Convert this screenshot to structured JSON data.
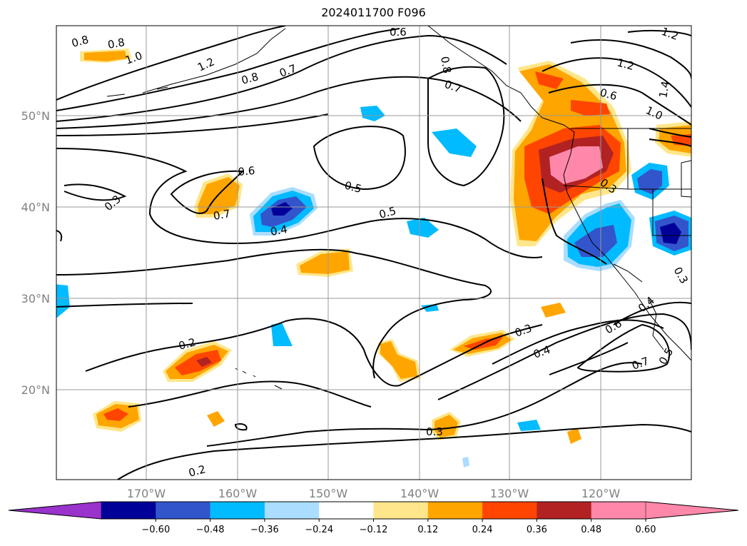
{
  "title": "2024011700 F096",
  "map": {
    "lat_labels": [
      "50°N",
      "40°N",
      "30°N",
      "20°N"
    ],
    "lon_labels": [
      "170°W",
      "160°W",
      "150°W",
      "140°W",
      "130°W",
      "120°W"
    ],
    "contour_labels": [
      "0.8",
      "0.8",
      "1.0",
      "1.2",
      "0.8",
      "0.7",
      "0.6",
      "0.8",
      "0.7",
      "0.6",
      "1.2",
      "1.0",
      "1.4",
      "1.2",
      "0.6",
      "0.5",
      "0.5",
      "0.7",
      "0.4",
      "0.3",
      "0.3",
      "0.2",
      "0.3",
      "0.4",
      "0.6",
      "0.7",
      "0.5",
      "0.3",
      "0.2",
      "0.3",
      "0.4"
    ]
  },
  "colorbar": {
    "ticks": [
      "−0.60",
      "−0.48",
      "−0.36",
      "−0.24",
      "−0.12",
      "0.12",
      "0.24",
      "0.36",
      "0.48",
      "0.60"
    ],
    "colors": [
      "#9933cc",
      "#000099",
      "#3355cc",
      "#00bbff",
      "#aaddff",
      "#ffffff",
      "#ffe68a",
      "#ffa500",
      "#ff4500",
      "#b22222",
      "#ff88aa",
      "#ff88aa"
    ]
  }
}
